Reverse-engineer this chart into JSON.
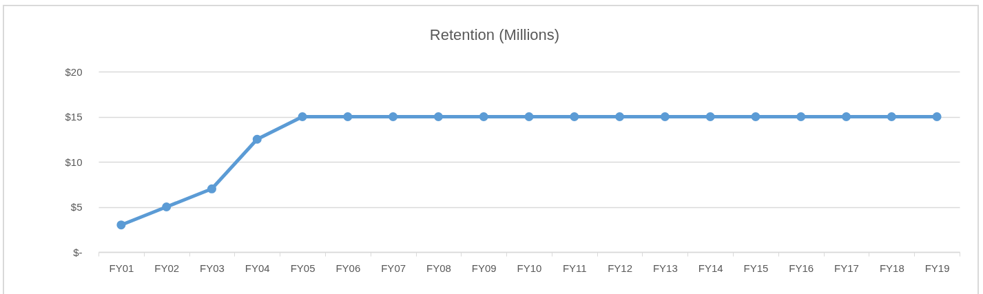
{
  "chart_data": {
    "type": "line",
    "title": "Retention (Millions)",
    "categories": [
      "FY01",
      "FY02",
      "FY03",
      "FY04",
      "FY05",
      "FY06",
      "FY07",
      "FY08",
      "FY09",
      "FY10",
      "FY11",
      "FY12",
      "FY13",
      "FY14",
      "FY15",
      "FY16",
      "FY17",
      "FY18",
      "FY19"
    ],
    "series": [
      {
        "color": "#5b9bd5",
        "values": [
          3,
          5,
          7,
          12.5,
          15,
          15,
          15,
          15,
          15,
          15,
          15,
          15,
          15,
          15,
          15,
          15,
          15,
          15,
          15
        ]
      }
    ],
    "ylim": [
      0,
      20
    ],
    "yticks": [
      {
        "value": 0,
        "label": "$-"
      },
      {
        "value": 5,
        "label": "$5"
      },
      {
        "value": 10,
        "label": "$10"
      },
      {
        "value": 15,
        "label": "$15"
      },
      {
        "value": 20,
        "label": "$20"
      }
    ],
    "grid": "y",
    "marker": "circle",
    "line_style": "solid"
  }
}
